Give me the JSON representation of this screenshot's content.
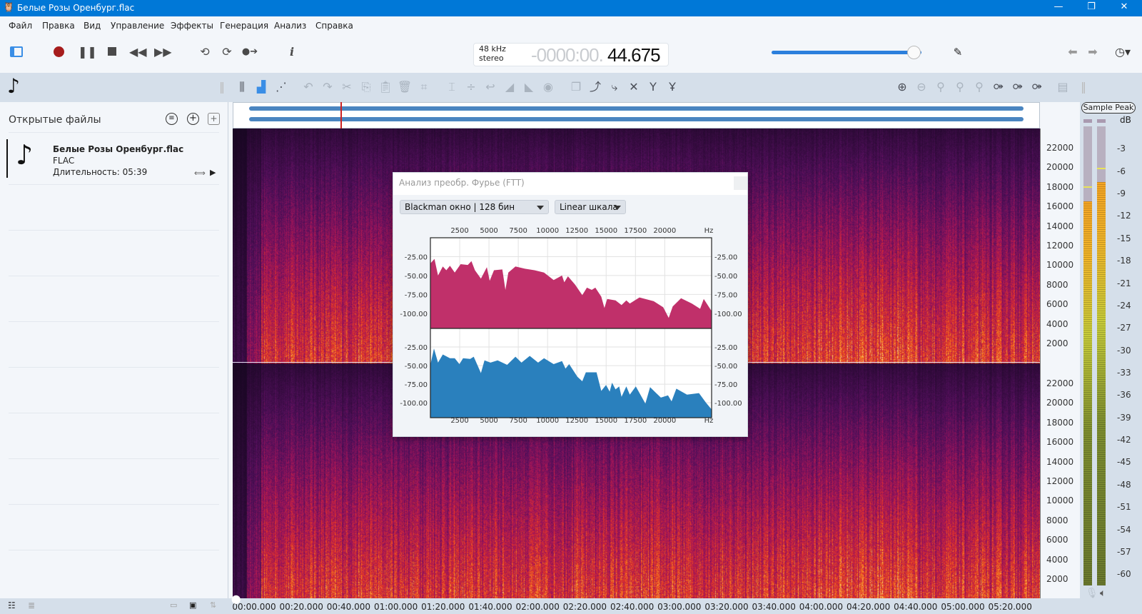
{
  "window": {
    "title": "Белые Розы Оренбург.flac",
    "minimize": "—",
    "maximize": "❐",
    "close": "✕"
  },
  "menu": [
    "Файл",
    "Правка",
    "Вид",
    "Управление",
    "Эффекты",
    "Генерация",
    "Анализ",
    "Справка"
  ],
  "transport": {
    "sample_rate": "48 kHz",
    "channels": "stereo",
    "time_dim": "-0000:00.",
    "time_value": "44.675",
    "volume_percent": 95,
    "record_color": "#a61c1c"
  },
  "toolbar_icons": [
    "panel-toggle-icon",
    "record-icon",
    "pause-icon",
    "stop-icon",
    "rewind-icon",
    "fast-forward-icon",
    "loop-icon",
    "loop-record-icon",
    "record-next-icon",
    "info-icon"
  ],
  "left_panel": {
    "title": "Открытые файлы",
    "files": [
      {
        "name": "Белые Розы Оренбург.flac",
        "format": "FLAC",
        "duration": "Длительность: 05:39"
      }
    ]
  },
  "spectrogram": {
    "freq_labels": [
      "22000",
      "20000",
      "18000",
      "16000",
      "14000",
      "12000",
      "10000",
      "8000",
      "6000",
      "4000",
      "2000"
    ],
    "time_labels": [
      "00:00.000",
      "00:20.000",
      "00:40.000",
      "01:00.000",
      "01:20.000",
      "01:40.000",
      "02:00.000",
      "02:20.000",
      "02:40.000",
      "03:00.000",
      "03:20.000",
      "03:40.000",
      "04:00.000",
      "04:20.000",
      "04:40.000",
      "05:00.000",
      "05:20.000"
    ],
    "playhead_seconds": 44.675
  },
  "meter": {
    "mode_button": "Sample Peak",
    "unit": "dB",
    "labels": [
      "-3",
      "-6",
      "-9",
      "-12",
      "-15",
      "-18",
      "-21",
      "-24",
      "-27",
      "-30",
      "-33",
      "-36",
      "-39",
      "-42",
      "-45",
      "-48",
      "-51",
      "-54",
      "-57",
      "-60"
    ],
    "left_level_db": -10,
    "right_level_db": -7.5,
    "left_peak_db": -8,
    "right_peak_db": -5.5
  },
  "fft_dialog": {
    "title": "Анализ преобр. Фурье (FTT)",
    "window_select": "Blackman окно | 128 бин",
    "scale_select": "Linear шкала"
  },
  "chart_data": {
    "type": "area",
    "xlabel": "Hz",
    "xlim": [
      0,
      24000
    ],
    "ylim": [
      -120,
      0
    ],
    "x_ticks": [
      "2500",
      "5000",
      "7500",
      "10000",
      "12500",
      "15000",
      "17500",
      "20000"
    ],
    "y_ticks": [
      "-25.00",
      "-50.00",
      "-75.00",
      "-100.00"
    ],
    "grid": true,
    "series": [
      {
        "color": "#c0306a",
        "points": [
          [
            0,
            -34
          ],
          [
            346,
            -28
          ],
          [
            650,
            -50
          ],
          [
            1060,
            -38
          ],
          [
            1360,
            -43
          ],
          [
            1670,
            -37
          ],
          [
            2075,
            -46
          ],
          [
            2580,
            -35
          ],
          [
            3190,
            -36
          ],
          [
            3500,
            -31
          ],
          [
            3800,
            -43
          ],
          [
            4310,
            -54
          ],
          [
            4820,
            -39
          ],
          [
            5060,
            -57
          ],
          [
            5430,
            -43
          ],
          [
            6140,
            -42
          ],
          [
            6400,
            -69
          ],
          [
            6650,
            -46
          ],
          [
            7260,
            -38
          ],
          [
            8070,
            -41
          ],
          [
            8890,
            -43
          ],
          [
            9700,
            -46
          ],
          [
            10520,
            -56
          ],
          [
            11230,
            -50
          ],
          [
            11430,
            -59
          ],
          [
            11740,
            -51
          ],
          [
            12350,
            -62
          ],
          [
            12960,
            -76
          ],
          [
            13360,
            -66
          ],
          [
            13770,
            -69
          ],
          [
            14080,
            -66
          ],
          [
            14580,
            -78
          ],
          [
            14850,
            -93
          ],
          [
            15090,
            -81
          ],
          [
            15800,
            -83
          ],
          [
            16310,
            -89
          ],
          [
            16720,
            -83
          ],
          [
            17020,
            -87
          ],
          [
            17840,
            -79
          ],
          [
            19060,
            -84
          ],
          [
            19870,
            -92
          ],
          [
            20340,
            -106
          ],
          [
            20680,
            -91
          ],
          [
            21390,
            -80
          ],
          [
            22310,
            -87
          ],
          [
            23020,
            -94
          ],
          [
            23330,
            -81
          ],
          [
            24000,
            -97
          ]
        ]
      },
      {
        "color": "#2a80bd",
        "points": [
          [
            0,
            -49
          ],
          [
            305,
            -27
          ],
          [
            650,
            -46
          ],
          [
            1060,
            -35
          ],
          [
            1670,
            -40
          ],
          [
            2075,
            -40
          ],
          [
            2480,
            -48
          ],
          [
            2790,
            -40
          ],
          [
            3400,
            -41
          ],
          [
            3700,
            -38
          ],
          [
            4310,
            -60
          ],
          [
            4620,
            -43
          ],
          [
            5130,
            -46
          ],
          [
            5740,
            -43
          ],
          [
            6550,
            -49
          ],
          [
            7260,
            -38
          ],
          [
            7770,
            -46
          ],
          [
            8480,
            -37
          ],
          [
            9190,
            -46
          ],
          [
            9700,
            -40
          ],
          [
            10520,
            -48
          ],
          [
            11230,
            -44
          ],
          [
            11530,
            -54
          ],
          [
            11840,
            -48
          ],
          [
            12550,
            -65
          ],
          [
            12960,
            -71
          ],
          [
            13270,
            -59
          ],
          [
            14180,
            -59
          ],
          [
            14580,
            -84
          ],
          [
            14990,
            -76
          ],
          [
            15300,
            -85
          ],
          [
            15500,
            -73
          ],
          [
            15800,
            -82
          ],
          [
            16110,
            -78
          ],
          [
            16310,
            -92
          ],
          [
            16720,
            -78
          ],
          [
            17020,
            -89
          ],
          [
            17530,
            -78
          ],
          [
            18350,
            -101
          ],
          [
            18750,
            -79
          ],
          [
            19670,
            -93
          ],
          [
            20280,
            -90
          ],
          [
            20580,
            -98
          ],
          [
            20990,
            -81
          ],
          [
            21900,
            -89
          ],
          [
            22920,
            -87
          ],
          [
            23530,
            -100
          ],
          [
            24000,
            -109
          ]
        ]
      }
    ]
  }
}
